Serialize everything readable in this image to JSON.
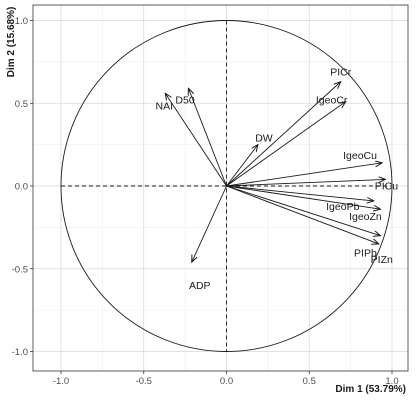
{
  "chart_data": {
    "type": "scatter",
    "subtype": "pca-variable-correlation-circle",
    "title": "",
    "xlabel": "Dim 1 (53.79%)",
    "ylabel": "Dim 2 (15.68%)",
    "xlim": [
      -1.0,
      1.0
    ],
    "ylim": [
      -1.0,
      1.0
    ],
    "x_ticks": [
      "-1.0",
      "-0.5",
      "0.0",
      "0.5",
      "1.0"
    ],
    "y_ticks": [
      "-1.0",
      "-0.5",
      "0.0",
      "0.5",
      "1.0"
    ],
    "grid": true,
    "unit_circle": true,
    "variables": [
      {
        "name": "PICr",
        "x": 0.69,
        "y": 0.63
      },
      {
        "name": "IgeoCr",
        "x": 0.72,
        "y": 0.51
      },
      {
        "name": "DW",
        "x": 0.19,
        "y": 0.25
      },
      {
        "name": "D50",
        "x": -0.23,
        "y": 0.59
      },
      {
        "name": "NAI",
        "x": -0.37,
        "y": 0.56
      },
      {
        "name": "IgeoCu",
        "x": 0.94,
        "y": 0.14
      },
      {
        "name": "PICu",
        "x": 0.96,
        "y": 0.04
      },
      {
        "name": "IgeoPb",
        "x": 0.89,
        "y": -0.09
      },
      {
        "name": "IgeoZn",
        "x": 0.93,
        "y": -0.14
      },
      {
        "name": "PIPb",
        "x": 0.93,
        "y": -0.3
      },
      {
        "name": "PIZn",
        "x": 0.92,
        "y": -0.35
      },
      {
        "name": "ADP",
        "x": -0.21,
        "y": -0.46
      }
    ]
  },
  "colors": {
    "arrow": "#1a1a1a",
    "grid_major": "#d9d9d9",
    "grid_minor": "#ededed",
    "axis_frame": "#333333"
  }
}
